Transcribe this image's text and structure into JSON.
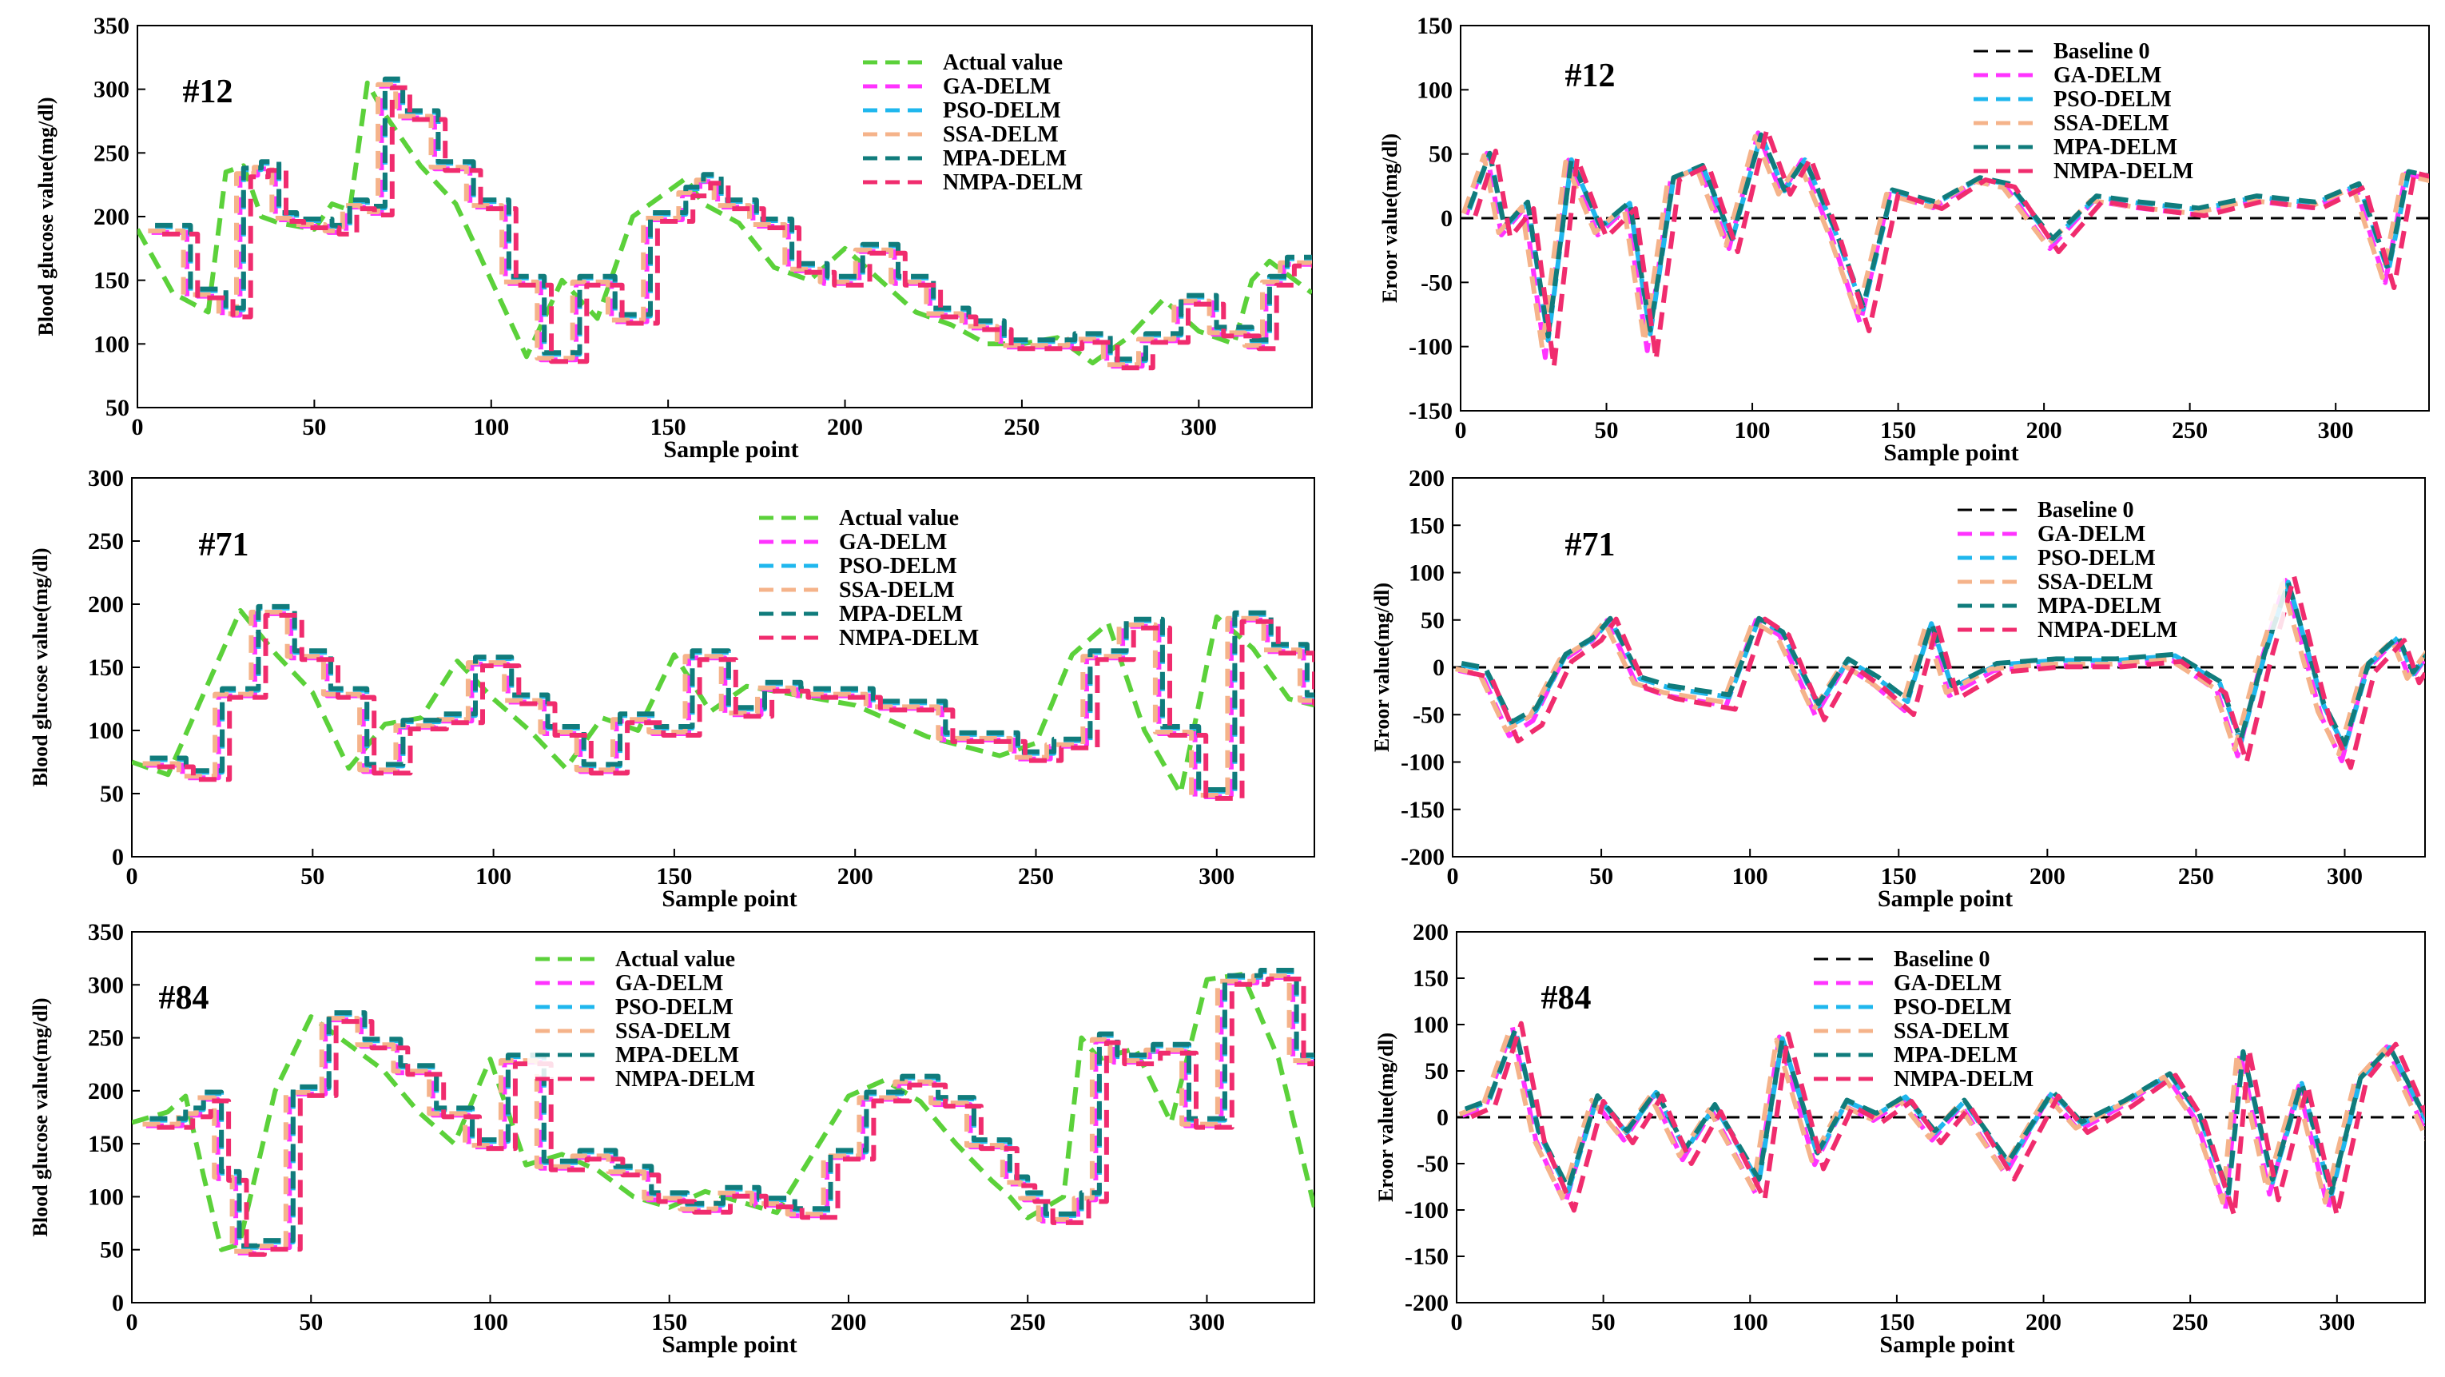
{
  "colors": {
    "Actual value": "#5bd13a",
    "GA-DELM": "#ff33ff",
    "PSO-DELM": "#1fb7ee",
    "SSA-DELM": "#f5b38a",
    "MPA-DELM": "#107c7c",
    "NMPA-DELM": "#f02c6e",
    "Baseline 0": "#000000"
  },
  "chart_data": [
    {
      "type": "line",
      "panel": "#12",
      "xlabel": "Sample point",
      "ylabel": "Blood glucose value(mg/dl)",
      "xlim": [
        0,
        332
      ],
      "ylim": [
        50,
        350
      ],
      "xticks": [
        0,
        50,
        100,
        150,
        200,
        250,
        300
      ],
      "yticks": [
        50,
        100,
        150,
        200,
        250,
        300,
        350
      ],
      "legend": [
        "Actual value",
        "GA-DELM",
        "PSO-DELM",
        "SSA-DELM",
        "MPA-DELM",
        "NMPA-DELM"
      ],
      "x": [
        0,
        10,
        20,
        25,
        30,
        35,
        40,
        50,
        55,
        60,
        65,
        70,
        80,
        90,
        100,
        110,
        120,
        130,
        140,
        150,
        155,
        160,
        170,
        180,
        190,
        200,
        210,
        220,
        230,
        240,
        250,
        260,
        270,
        280,
        290,
        300,
        310,
        315,
        320,
        332
      ],
      "values": [
        190,
        140,
        125,
        235,
        240,
        200,
        195,
        190,
        210,
        205,
        305,
        280,
        240,
        210,
        150,
        90,
        150,
        120,
        200,
        220,
        230,
        210,
        195,
        160,
        150,
        175,
        150,
        125,
        115,
        100,
        100,
        105,
        85,
        105,
        135,
        110,
        100,
        150,
        165,
        140
      ]
    },
    {
      "type": "line",
      "panel": "#12",
      "xlabel": "Sample point",
      "ylabel": "Eroor value(mg/dl)",
      "xlim": [
        0,
        332
      ],
      "ylim": [
        -150,
        150
      ],
      "xticks": [
        0,
        50,
        100,
        150,
        200,
        250,
        300
      ],
      "yticks": [
        -150,
        -100,
        -50,
        0,
        50,
        100,
        150
      ],
      "legend": [
        "Baseline 0",
        "GA-DELM",
        "PSO-DELM",
        "SSA-DELM",
        "MPA-DELM",
        "NMPA-DELM"
      ],
      "x": [
        0,
        7,
        12,
        20,
        27,
        35,
        45,
        55,
        62,
        70,
        80,
        90,
        100,
        108,
        115,
        125,
        135,
        145,
        160,
        175,
        185,
        200,
        215,
        230,
        250,
        270,
        290,
        305,
        315,
        322,
        332
      ],
      "values": [
        5,
        50,
        -10,
        10,
        -100,
        45,
        -10,
        10,
        -95,
        30,
        40,
        -20,
        65,
        20,
        45,
        -10,
        -75,
        20,
        10,
        30,
        25,
        -20,
        15,
        10,
        5,
        15,
        10,
        25,
        -45,
        35,
        30
      ]
    },
    {
      "type": "line",
      "panel": "#71",
      "xlabel": "Sample point",
      "ylabel": "Blood glucose value(mg/dl)",
      "xlim": [
        0,
        327
      ],
      "ylim": [
        0,
        300
      ],
      "xticks": [
        0,
        50,
        100,
        150,
        200,
        250,
        300
      ],
      "yticks": [
        0,
        50,
        100,
        150,
        200,
        250,
        300
      ],
      "legend": [
        "Actual value",
        "GA-DELM",
        "PSO-DELM",
        "SSA-DELM",
        "MPA-DELM",
        "NMPA-DELM"
      ],
      "x": [
        0,
        10,
        20,
        30,
        40,
        50,
        60,
        70,
        80,
        90,
        100,
        110,
        120,
        130,
        140,
        150,
        160,
        170,
        180,
        200,
        220,
        240,
        250,
        260,
        270,
        280,
        290,
        300,
        310,
        320,
        327
      ],
      "values": [
        75,
        65,
        130,
        195,
        160,
        130,
        70,
        105,
        110,
        155,
        125,
        100,
        70,
        110,
        100,
        160,
        115,
        135,
        130,
        120,
        95,
        80,
        90,
        160,
        185,
        100,
        50,
        190,
        165,
        125,
        120
      ]
    },
    {
      "type": "line",
      "panel": "#71",
      "xlabel": "Sample point",
      "ylabel": "Eroor value(mg/dl)",
      "xlim": [
        0,
        327
      ],
      "ylim": [
        -200,
        200
      ],
      "xticks": [
        0,
        50,
        100,
        150,
        200,
        250,
        300
      ],
      "yticks": [
        -200,
        -150,
        -100,
        -50,
        0,
        50,
        100,
        150,
        200
      ],
      "legend": [
        "Baseline 0",
        "GA-DELM",
        "PSO-DELM",
        "SSA-DELM",
        "MPA-DELM",
        "NMPA-DELM"
      ],
      "x": [
        0,
        8,
        17,
        25,
        35,
        45,
        50,
        60,
        70,
        80,
        90,
        100,
        108,
        120,
        130,
        140,
        150,
        158,
        165,
        180,
        200,
        220,
        240,
        255,
        262,
        270,
        278,
        285,
        290,
        297,
        305,
        315,
        320,
        327
      ],
      "values": [
        0,
        -5,
        -65,
        -50,
        10,
        30,
        50,
        -15,
        -25,
        -30,
        -35,
        50,
        35,
        -45,
        5,
        -15,
        -40,
        45,
        -25,
        0,
        5,
        5,
        10,
        -20,
        -85,
        10,
        90,
        10,
        -45,
        -90,
        0,
        30,
        -10,
        20
      ]
    },
    {
      "type": "line",
      "panel": "#84",
      "xlabel": "Sample point",
      "ylabel": "Blood glucose value(mg/dl)",
      "xlim": [
        0,
        330
      ],
      "ylim": [
        0,
        350
      ],
      "xticks": [
        0,
        50,
        100,
        150,
        200,
        250,
        300
      ],
      "yticks": [
        0,
        50,
        100,
        150,
        200,
        250,
        300,
        350
      ],
      "legend": [
        "Actual value",
        "GA-DELM",
        "PSO-DELM",
        "SSA-DELM",
        "MPA-DELM",
        "NMPA-DELM"
      ],
      "x": [
        0,
        10,
        15,
        20,
        25,
        30,
        40,
        50,
        60,
        70,
        80,
        90,
        100,
        110,
        120,
        130,
        140,
        150,
        160,
        170,
        180,
        190,
        200,
        210,
        220,
        230,
        240,
        245,
        250,
        260,
        265,
        270,
        280,
        290,
        300,
        310,
        320,
        330
      ],
      "values": [
        170,
        180,
        195,
        120,
        50,
        55,
        200,
        270,
        245,
        220,
        180,
        150,
        230,
        130,
        140,
        125,
        100,
        90,
        105,
        95,
        85,
        140,
        195,
        210,
        190,
        150,
        115,
        100,
        80,
        100,
        250,
        230,
        240,
        170,
        305,
        310,
        230,
        90
      ]
    },
    {
      "type": "line",
      "panel": "#84",
      "xlabel": "Sample point",
      "ylabel": "Eroor value(mg/dl)",
      "xlim": [
        0,
        330
      ],
      "ylim": [
        -200,
        200
      ],
      "xticks": [
        0,
        50,
        100,
        150,
        200,
        250,
        300
      ],
      "yticks": [
        -200,
        -150,
        -100,
        -50,
        0,
        50,
        100,
        150,
        200
      ],
      "legend": [
        "Baseline 0",
        "GA-DELM",
        "PSO-DELM",
        "SSA-DELM",
        "MPA-DELM",
        "NMPA-DELM"
      ],
      "x": [
        0,
        8,
        17,
        25,
        35,
        45,
        55,
        65,
        75,
        85,
        100,
        108,
        120,
        130,
        140,
        150,
        160,
        170,
        185,
        200,
        210,
        225,
        240,
        250,
        260,
        265,
        275,
        285,
        295,
        305,
        315,
        322,
        330
      ],
      "values": [
        5,
        15,
        95,
        -20,
        -85,
        20,
        -20,
        25,
        -40,
        10,
        -75,
        85,
        -45,
        15,
        0,
        20,
        -20,
        15,
        -55,
        25,
        -10,
        15,
        45,
        0,
        -90,
        70,
        -75,
        35,
        -90,
        40,
        75,
        30,
        -25
      ]
    }
  ]
}
